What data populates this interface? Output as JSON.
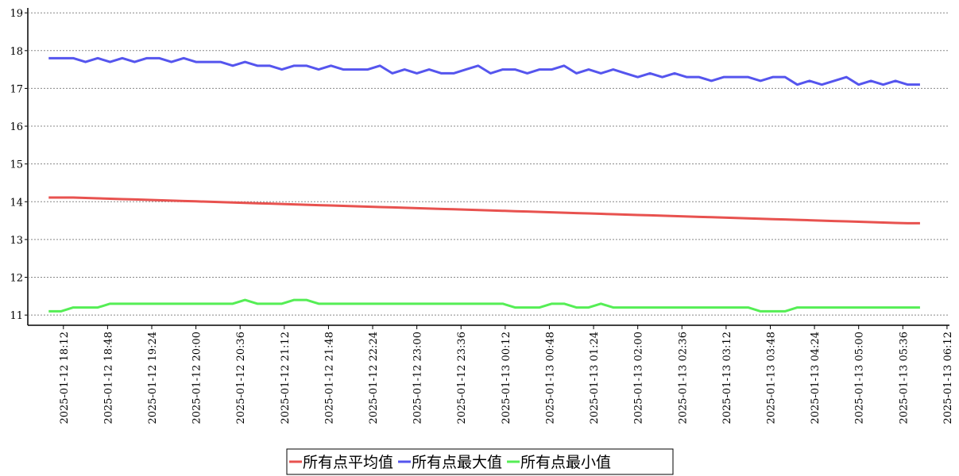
{
  "chart_data": {
    "type": "line",
    "x": [
      "2025-01-12 18:00",
      "2025-01-12 18:10",
      "2025-01-12 18:20",
      "2025-01-12 18:30",
      "2025-01-12 18:40",
      "2025-01-12 18:50",
      "2025-01-12 19:00",
      "2025-01-12 19:10",
      "2025-01-12 19:20",
      "2025-01-12 19:30",
      "2025-01-12 19:40",
      "2025-01-12 19:50",
      "2025-01-12 20:00",
      "2025-01-12 20:10",
      "2025-01-12 20:20",
      "2025-01-12 20:30",
      "2025-01-12 20:40",
      "2025-01-12 20:50",
      "2025-01-12 21:00",
      "2025-01-12 21:10",
      "2025-01-12 21:20",
      "2025-01-12 21:30",
      "2025-01-12 21:40",
      "2025-01-12 21:50",
      "2025-01-12 22:00",
      "2025-01-12 22:10",
      "2025-01-12 22:20",
      "2025-01-12 22:30",
      "2025-01-12 22:40",
      "2025-01-12 22:50",
      "2025-01-12 23:00",
      "2025-01-12 23:10",
      "2025-01-12 23:20",
      "2025-01-12 23:30",
      "2025-01-12 23:40",
      "2025-01-12 23:50",
      "2025-01-13 00:00",
      "2025-01-13 00:10",
      "2025-01-13 00:20",
      "2025-01-13 00:30",
      "2025-01-13 00:40",
      "2025-01-13 00:50",
      "2025-01-13 01:00",
      "2025-01-13 01:10",
      "2025-01-13 01:20",
      "2025-01-13 01:30",
      "2025-01-13 01:40",
      "2025-01-13 01:50",
      "2025-01-13 02:00",
      "2025-01-13 02:10",
      "2025-01-13 02:20",
      "2025-01-13 02:30",
      "2025-01-13 02:40",
      "2025-01-13 02:50",
      "2025-01-13 03:00",
      "2025-01-13 03:10",
      "2025-01-13 03:20",
      "2025-01-13 03:30",
      "2025-01-13 03:40",
      "2025-01-13 03:50",
      "2025-01-13 04:00",
      "2025-01-13 04:10",
      "2025-01-13 04:20",
      "2025-01-13 04:30",
      "2025-01-13 04:40",
      "2025-01-13 04:50",
      "2025-01-13 05:00",
      "2025-01-13 05:10",
      "2025-01-13 05:20",
      "2025-01-13 05:30",
      "2025-01-13 05:40",
      "2025-01-13 05:50"
    ],
    "series": [
      {
        "name": "所有点平均值",
        "color": "#e8524f",
        "values": [
          14.11,
          14.11,
          14.11,
          14.1,
          14.09,
          14.08,
          14.07,
          14.06,
          14.05,
          14.04,
          14.03,
          14.02,
          14.01,
          14.0,
          13.99,
          13.98,
          13.97,
          13.96,
          13.95,
          13.94,
          13.93,
          13.92,
          13.91,
          13.9,
          13.89,
          13.88,
          13.87,
          13.86,
          13.85,
          13.84,
          13.83,
          13.82,
          13.81,
          13.8,
          13.79,
          13.78,
          13.77,
          13.76,
          13.75,
          13.74,
          13.73,
          13.72,
          13.71,
          13.7,
          13.69,
          13.68,
          13.67,
          13.66,
          13.65,
          13.64,
          13.63,
          13.62,
          13.61,
          13.6,
          13.59,
          13.58,
          13.57,
          13.56,
          13.55,
          13.54,
          13.53,
          13.52,
          13.51,
          13.5,
          13.49,
          13.48,
          13.47,
          13.46,
          13.45,
          13.44,
          13.43,
          13.43
        ]
      },
      {
        "name": "所有点最大值",
        "color": "#5555ee",
        "values": [
          17.8,
          17.8,
          17.8,
          17.7,
          17.8,
          17.7,
          17.8,
          17.7,
          17.8,
          17.8,
          17.7,
          17.8,
          17.7,
          17.7,
          17.7,
          17.6,
          17.7,
          17.6,
          17.6,
          17.5,
          17.6,
          17.6,
          17.5,
          17.6,
          17.5,
          17.5,
          17.5,
          17.6,
          17.4,
          17.5,
          17.4,
          17.5,
          17.4,
          17.4,
          17.5,
          17.6,
          17.4,
          17.5,
          17.5,
          17.4,
          17.5,
          17.5,
          17.6,
          17.4,
          17.5,
          17.4,
          17.5,
          17.4,
          17.3,
          17.4,
          17.3,
          17.4,
          17.3,
          17.3,
          17.2,
          17.3,
          17.3,
          17.3,
          17.2,
          17.3,
          17.3,
          17.1,
          17.2,
          17.1,
          17.2,
          17.3,
          17.1,
          17.2,
          17.1,
          17.2,
          17.1,
          17.1
        ]
      },
      {
        "name": "所有点最小值",
        "color": "#55ee55",
        "values": [
          11.1,
          11.1,
          11.2,
          11.2,
          11.2,
          11.3,
          11.3,
          11.3,
          11.3,
          11.3,
          11.3,
          11.3,
          11.3,
          11.3,
          11.3,
          11.3,
          11.4,
          11.3,
          11.3,
          11.3,
          11.4,
          11.4,
          11.3,
          11.3,
          11.3,
          11.3,
          11.3,
          11.3,
          11.3,
          11.3,
          11.3,
          11.3,
          11.3,
          11.3,
          11.3,
          11.3,
          11.3,
          11.3,
          11.2,
          11.2,
          11.2,
          11.3,
          11.3,
          11.2,
          11.2,
          11.3,
          11.2,
          11.2,
          11.2,
          11.2,
          11.2,
          11.2,
          11.2,
          11.2,
          11.2,
          11.2,
          11.2,
          11.2,
          11.1,
          11.1,
          11.1,
          11.2,
          11.2,
          11.2,
          11.2,
          11.2,
          11.2,
          11.2,
          11.2,
          11.2,
          11.2,
          11.2
        ]
      }
    ],
    "xlim": [
      "2025-01-12 17:43",
      "2025-01-13 06:14"
    ],
    "xticks": [
      "2025-01-12 18:12",
      "2025-01-12 18:48",
      "2025-01-12 19:24",
      "2025-01-12 20:00",
      "2025-01-12 20:36",
      "2025-01-12 21:12",
      "2025-01-12 21:48",
      "2025-01-12 22:24",
      "2025-01-12 23:00",
      "2025-01-12 23:36",
      "2025-01-13 00:12",
      "2025-01-13 00:48",
      "2025-01-13 01:24",
      "2025-01-13 02:00",
      "2025-01-13 02:36",
      "2025-01-13 03:12",
      "2025-01-13 03:48",
      "2025-01-13 04:24",
      "2025-01-13 05:00",
      "2025-01-13 05:36",
      "2025-01-13 06:12"
    ],
    "ylim": [
      10.73,
      19.13
    ],
    "yticks": [
      11,
      12,
      13,
      14,
      15,
      16,
      17,
      18,
      19
    ],
    "grid": true,
    "legend": "bottom"
  }
}
